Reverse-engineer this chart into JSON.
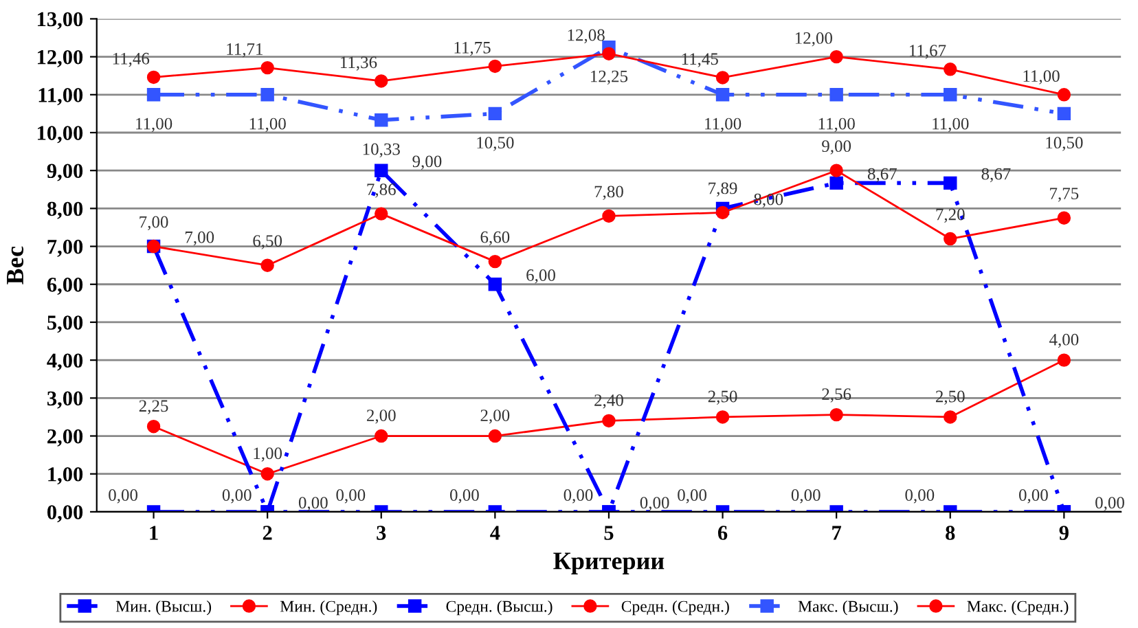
{
  "chart_data": {
    "type": "line",
    "xlabel": "Критерии",
    "ylabel": "Вес",
    "categories": [
      "1",
      "2",
      "3",
      "4",
      "5",
      "6",
      "7",
      "8",
      "9"
    ],
    "ylim": [
      0,
      13
    ],
    "yticks": [
      {
        "value": 0,
        "label": "0,00"
      },
      {
        "value": 1,
        "label": "1,00"
      },
      {
        "value": 2,
        "label": "2,00"
      },
      {
        "value": 3,
        "label": "3,00"
      },
      {
        "value": 4,
        "label": "4,00"
      },
      {
        "value": 5,
        "label": "5,00"
      },
      {
        "value": 6,
        "label": "6,00"
      },
      {
        "value": 7,
        "label": "7,00"
      },
      {
        "value": 8,
        "label": "8,00"
      },
      {
        "value": 9,
        "label": "9,00"
      },
      {
        "value": 10,
        "label": "10,00"
      },
      {
        "value": 11,
        "label": "11,00"
      },
      {
        "value": 12,
        "label": "12,00"
      },
      {
        "value": 13,
        "label": "13,00"
      }
    ],
    "grid": "y",
    "legend": "bottom",
    "series": [
      {
        "name": "Мин. (Высш.)",
        "color": "#0000ff",
        "marker": "square",
        "line_style": "dashed",
        "values": [
          0,
          0,
          0,
          0,
          0,
          0,
          0,
          0,
          0
        ],
        "value_labels": [
          "0,00",
          "0,00",
          "0,00",
          "0,00",
          "0,00",
          "0,00",
          "0,00",
          "0,00",
          "0,00"
        ]
      },
      {
        "name": "Мин. (Средн.)",
        "color": "#ff0000",
        "marker": "circle",
        "line_style": "solid",
        "values": [
          2.25,
          1,
          2,
          2,
          2.4,
          2.5,
          2.56,
          2.5,
          4
        ],
        "value_labels": [
          "2,25",
          "1,00",
          "2,00",
          "2,00",
          "2,40",
          "2,50",
          "2,56",
          "2,50",
          "4,00"
        ]
      },
      {
        "name": "Средн. (Высш.)",
        "color": "#0000ff",
        "marker": "square",
        "line_style": "dashed",
        "values": [
          7,
          0,
          9,
          6,
          0,
          8,
          8.67,
          8.67,
          0
        ],
        "value_labels": [
          "7,00",
          "0,00",
          "9,00",
          "6,00",
          "0,00",
          "8,00",
          "8,67",
          "8,67",
          "0,00"
        ]
      },
      {
        "name": "Средн. (Средн.)",
        "color": "#ff0000",
        "marker": "circle",
        "line_style": "solid",
        "values": [
          7,
          6.5,
          7.86,
          6.6,
          7.8,
          7.89,
          9,
          7.2,
          7.75
        ],
        "value_labels": [
          "7,00",
          "6,50",
          "7,86",
          "6,60",
          "7,80",
          "7,89",
          "9,00",
          "7,20",
          "7,75"
        ]
      },
      {
        "name": "Макс. (Высш.)",
        "color": "#3355ff",
        "marker": "square",
        "line_style": "dashed",
        "values": [
          11,
          11,
          10.33,
          10.5,
          12.25,
          11,
          11,
          11,
          10.5
        ],
        "value_labels": [
          "11,00",
          "11,00",
          "10,33",
          "10,50",
          "12,25",
          "11,00",
          "11,00",
          "11,00",
          "10,50"
        ]
      },
      {
        "name": "Макс. (Средн.)",
        "color": "#ff0000",
        "marker": "circle",
        "line_style": "solid",
        "values": [
          11.46,
          11.71,
          11.36,
          11.75,
          12.08,
          11.45,
          12,
          11.67,
          11
        ],
        "value_labels": [
          "11,46",
          "11,71",
          "11,36",
          "11,75",
          "12,08",
          "11,45",
          "12,00",
          "11,67",
          "11,00"
        ]
      }
    ]
  }
}
